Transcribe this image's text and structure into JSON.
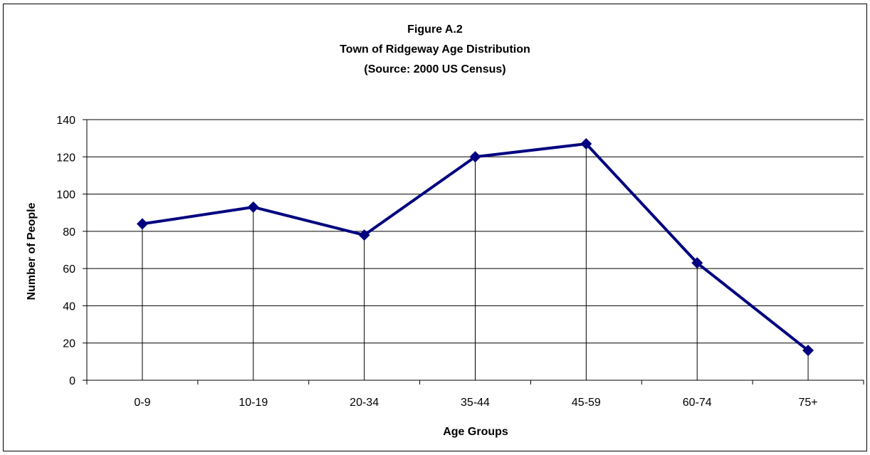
{
  "chart_data": {
    "type": "line",
    "title": "Figure A.2",
    "subtitle_lines": [
      "Town of Ridgeway Age Distribution",
      "(Source:  2000 US  Census)"
    ],
    "xlabel": "Age Groups",
    "ylabel": "Number of People",
    "categories": [
      "0-9",
      "10-19",
      "20-34",
      "35-44",
      "45-59",
      "60-74",
      "75+"
    ],
    "series": [
      {
        "values": [
          84,
          93,
          78,
          120,
          127,
          63,
          16
        ]
      }
    ],
    "ylim": [
      0,
      140
    ],
    "yticks": [
      0,
      20,
      40,
      60,
      80,
      100,
      120,
      140
    ],
    "grid": true,
    "drop_lines": true,
    "legend": "none",
    "colors": {
      "series": "#000080",
      "grid": "#000000",
      "axis": "#000000"
    }
  }
}
